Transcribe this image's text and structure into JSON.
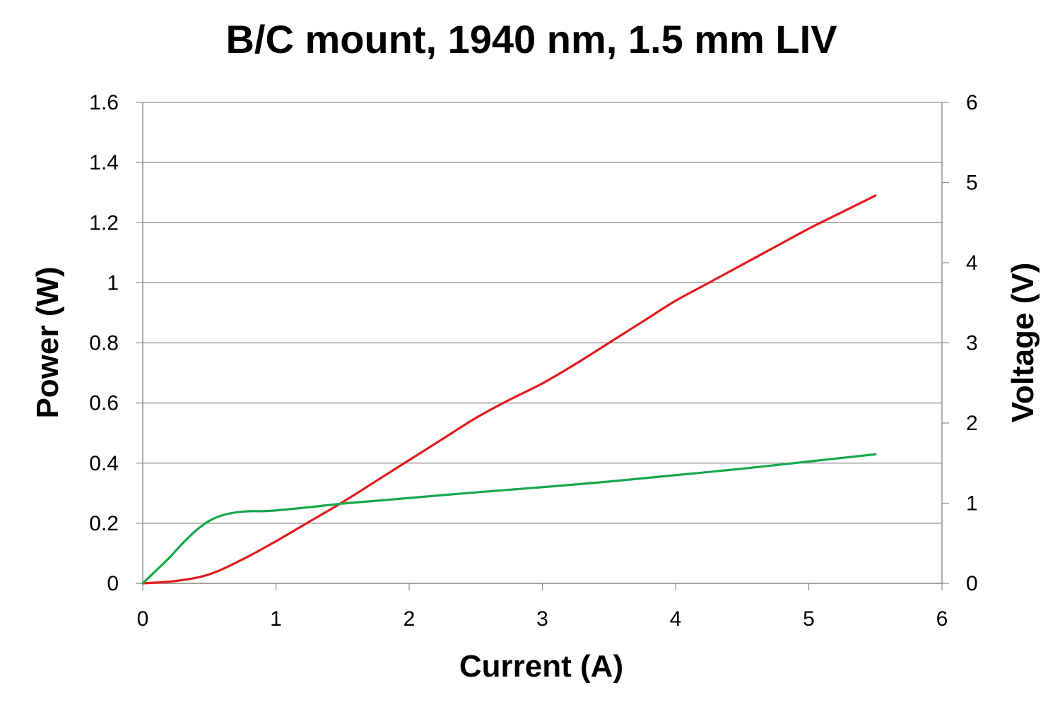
{
  "chart_data": {
    "type": "line",
    "title": "B/C mount, 1940 nm, 1.5 mm LIV",
    "xlabel": "Current (A)",
    "ylabel": "Power (W)",
    "y2label": "Voltage (V)",
    "xlim": [
      0,
      6
    ],
    "ylim": [
      0,
      1.6
    ],
    "y2lim": [
      0,
      6
    ],
    "x_ticks": [
      "0",
      "1",
      "2",
      "3",
      "4",
      "5",
      "6"
    ],
    "y_ticks": [
      "0",
      "0.2",
      "0.4",
      "0.6",
      "0.8",
      "1",
      "1.2",
      "1.4",
      "1.6"
    ],
    "y2_ticks": [
      "0",
      "1",
      "2",
      "3",
      "4",
      "5",
      "6"
    ],
    "grid": true,
    "series": [
      {
        "axis": "left",
        "color": "#e31a1c",
        "points": [
          [
            0,
            0
          ],
          [
            0.25,
            0.008
          ],
          [
            0.5,
            0.03
          ],
          [
            0.75,
            0.08
          ],
          [
            1.0,
            0.14
          ],
          [
            1.25,
            0.205
          ],
          [
            1.5,
            0.27
          ],
          [
            1.75,
            0.34
          ],
          [
            2.0,
            0.41
          ],
          [
            2.25,
            0.48
          ],
          [
            2.5,
            0.55
          ],
          [
            2.75,
            0.61
          ],
          [
            3.0,
            0.665
          ],
          [
            3.25,
            0.73
          ],
          [
            3.5,
            0.8
          ],
          [
            3.75,
            0.87
          ],
          [
            4.0,
            0.94
          ],
          [
            4.25,
            1.0
          ],
          [
            4.5,
            1.06
          ],
          [
            4.75,
            1.12
          ],
          [
            5.0,
            1.18
          ],
          [
            5.25,
            1.235
          ],
          [
            5.5,
            1.29
          ]
        ]
      },
      {
        "axis": "right",
        "color": "#16a84a",
        "points": [
          [
            0,
            0
          ],
          [
            0.1,
            0.16
          ],
          [
            0.2,
            0.32
          ],
          [
            0.3,
            0.5
          ],
          [
            0.4,
            0.66
          ],
          [
            0.5,
            0.78
          ],
          [
            0.6,
            0.85
          ],
          [
            0.7,
            0.885
          ],
          [
            0.8,
            0.9
          ],
          [
            0.9,
            0.9
          ],
          [
            1.0,
            0.91
          ],
          [
            1.25,
            0.95
          ],
          [
            1.5,
            0.995
          ],
          [
            1.75,
            1.03
          ],
          [
            2.0,
            1.065
          ],
          [
            2.5,
            1.135
          ],
          [
            3.0,
            1.2
          ],
          [
            3.5,
            1.27
          ],
          [
            4.0,
            1.35
          ],
          [
            4.5,
            1.43
          ],
          [
            5.0,
            1.52
          ],
          [
            5.5,
            1.61
          ]
        ]
      }
    ]
  }
}
